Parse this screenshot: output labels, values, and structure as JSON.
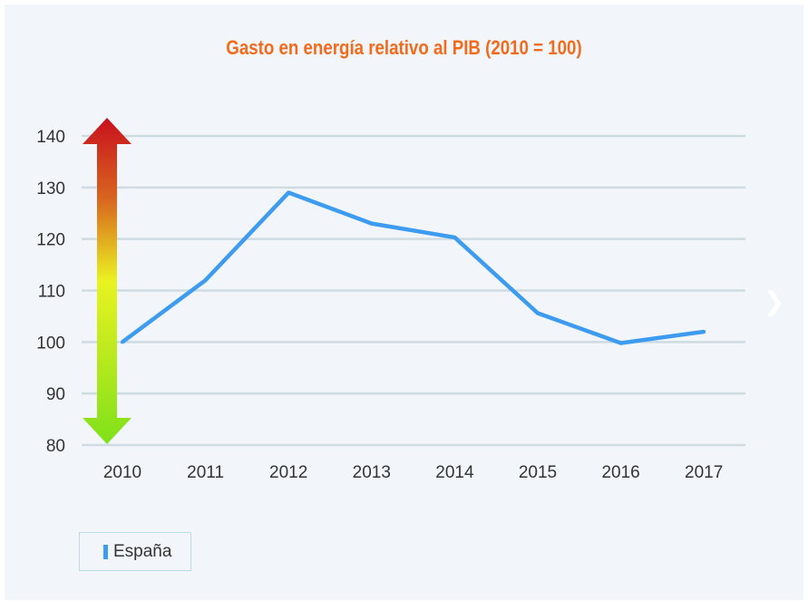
{
  "chart_data": {
    "type": "line",
    "title": "Gasto en energía relativo al PIB (2010 = 100)",
    "categories": [
      "2010",
      "2011",
      "2012",
      "2013",
      "2014",
      "2015",
      "2016",
      "2017"
    ],
    "series": [
      {
        "name": "España",
        "values": [
          100,
          112,
          129,
          123,
          120.3,
          105.6,
          99.8,
          102
        ],
        "color": "#3d9bf0"
      }
    ],
    "ylim": [
      80,
      140
    ],
    "yticks": [
      80,
      90,
      100,
      110,
      120,
      130,
      140
    ],
    "grid": true,
    "legend_placement": "bottom-left",
    "annotation": "vertical gradient arrow red (top) to green (bottom)"
  },
  "nav": {
    "next_icon": "chevron-right-icon"
  }
}
